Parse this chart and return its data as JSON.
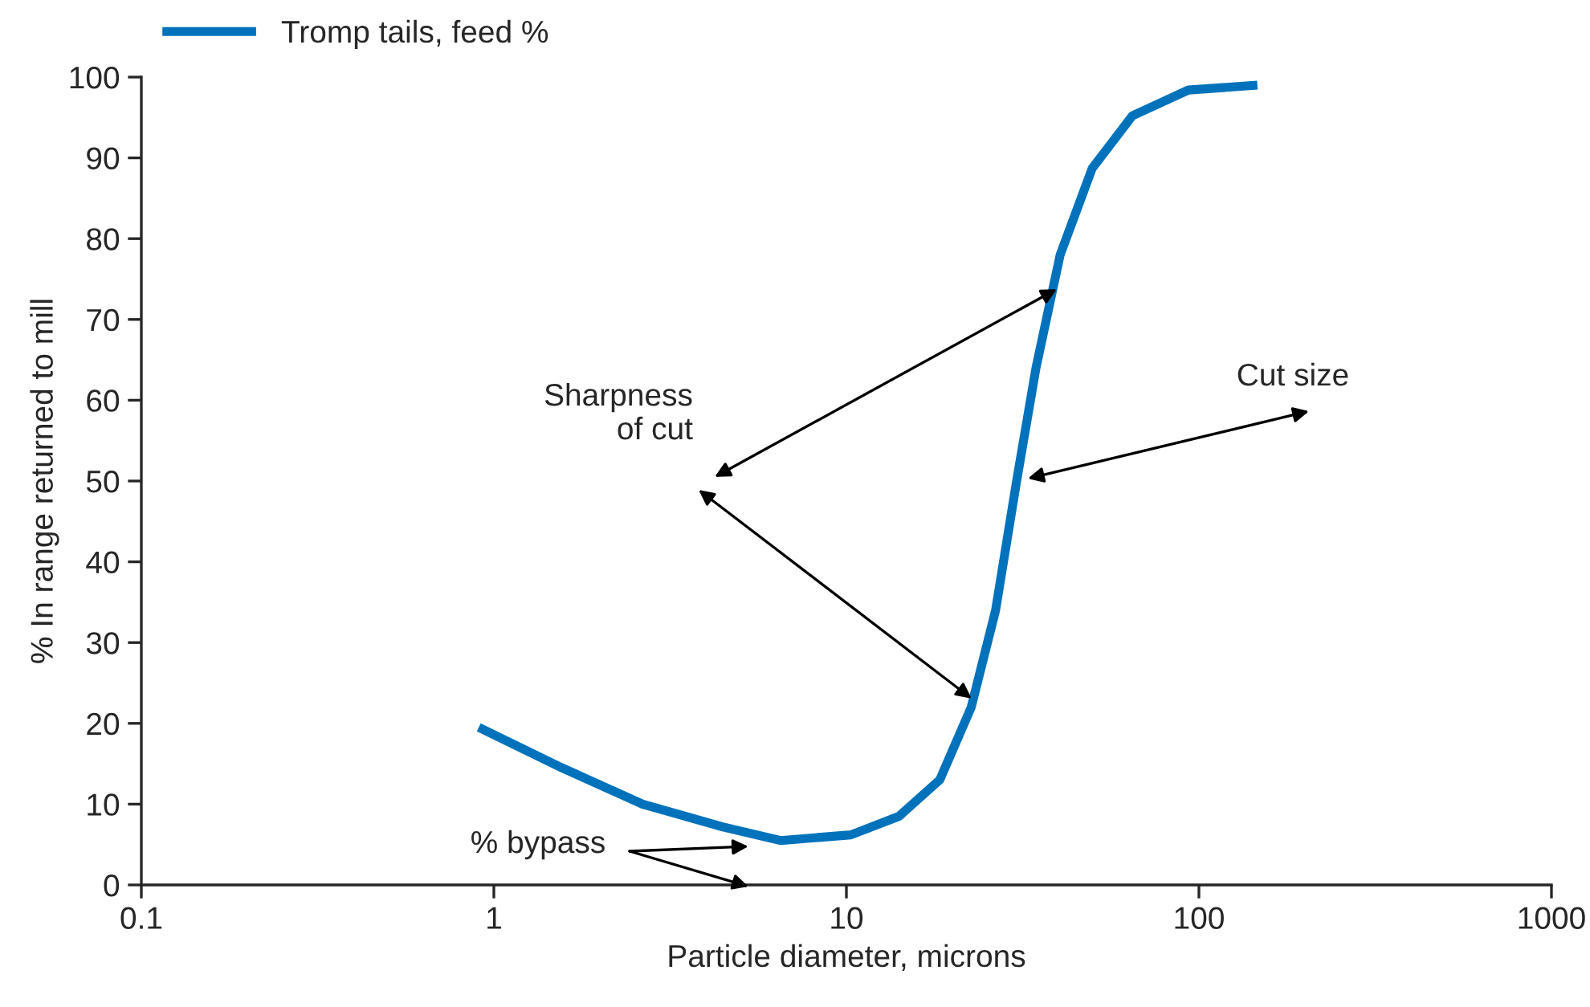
{
  "chart_data": {
    "type": "line",
    "xlabel": "Particle diameter, microns",
    "ylabel": "% In range returned to mill",
    "x": [
      0.906,
      1.56,
      2.64,
      4.45,
      6.5,
      10.3,
      14.1,
      18.4,
      22.6,
      26.5,
      30.4,
      34.5,
      40.4,
      49.8,
      64.7,
      93.3,
      146.5
    ],
    "series": [
      {
        "name": "Tromp tails, feed %",
        "color": "#0072bc",
        "values": [
          19.5,
          14.5,
          10,
          7.2,
          5.5,
          6.2,
          8.5,
          13,
          22,
          34,
          50,
          64,
          78,
          88.7,
          95.2,
          98.4,
          99
        ]
      }
    ],
    "log": "x",
    "xlim": [
      0.1,
      1000
    ],
    "xticks": [
      0.1,
      1,
      10,
      100,
      1000
    ],
    "ylim": [
      0,
      100
    ],
    "yticks": [
      0,
      10,
      20,
      30,
      40,
      50,
      60,
      70,
      80,
      90,
      100
    ],
    "grid": false,
    "legend": "top left",
    "line_style": "solid",
    "marker": "none",
    "annotations": [
      "Cut size",
      "Sharpness\nof cut",
      "% bypass"
    ]
  }
}
